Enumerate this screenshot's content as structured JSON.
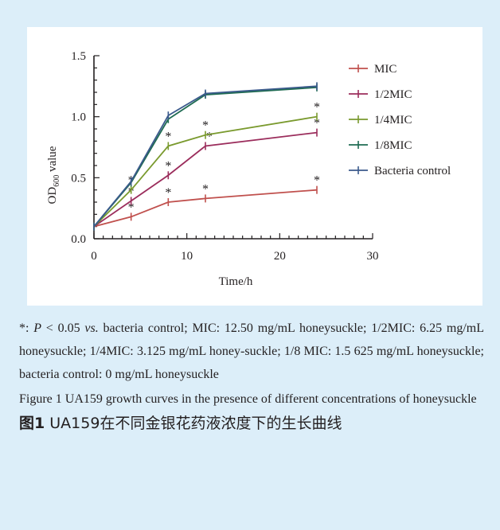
{
  "chart_data": {
    "type": "line",
    "title": "",
    "xlabel": "Time/h",
    "ylabel": {
      "main": "OD",
      "sub": "600",
      "rest": " value"
    },
    "xlim": [
      0,
      30
    ],
    "ylim": [
      0,
      1.5
    ],
    "x_ticks": [
      "0",
      "10",
      "20",
      "30"
    ],
    "y_ticks": [
      "0.0",
      "0.5",
      "1.0",
      "1.5"
    ],
    "x_tick_values": [
      0,
      10,
      20,
      30
    ],
    "y_tick_values": [
      0,
      0.5,
      1.0,
      1.5
    ],
    "x": [
      0,
      4,
      8,
      12,
      24
    ],
    "legend_position": "right",
    "grid": false,
    "series": [
      {
        "name": "MIC",
        "color": "#c0504d",
        "values": [
          0.1,
          0.18,
          0.3,
          0.33,
          0.4
        ],
        "stars": [
          false,
          true,
          true,
          true,
          true
        ]
      },
      {
        "name": "1/2MIC",
        "color": "#9b2d5c",
        "values": [
          0.1,
          0.31,
          0.52,
          0.76,
          0.87
        ],
        "stars": [
          false,
          true,
          true,
          true,
          true
        ]
      },
      {
        "name": "1/4MIC",
        "color": "#7a9a2e",
        "values": [
          0.1,
          0.4,
          0.76,
          0.85,
          1.0
        ],
        "stars": [
          false,
          true,
          true,
          true,
          true
        ]
      },
      {
        "name": "1/8MIC",
        "color": "#1f6b52",
        "values": [
          0.1,
          0.46,
          0.98,
          1.18,
          1.24
        ],
        "stars": [
          false,
          false,
          false,
          false,
          false
        ]
      },
      {
        "name": "Bacteria control",
        "color": "#3b5a8c",
        "values": [
          0.1,
          0.47,
          1.01,
          1.19,
          1.25
        ],
        "stars": [
          false,
          false,
          false,
          false,
          false
        ]
      }
    ],
    "star_label": "*"
  },
  "caption": {
    "note_star": "*: ",
    "note_p": "P",
    "note_lt": " < 0.05 ",
    "note_vs": "vs.",
    "note_rest": " bacteria control; MIC: 12.50 mg/mL honeysuckle; 1/2MIC: 6.25 mg/mL honeysuckle; 1/4MIC: 3.125 mg/mL honey-suckle; 1/8 MIC: 1.5 625 mg/mL honeysuckle; bacteria control: 0 mg/mL honeysuckle",
    "figure_en": "Figure 1   UA159 growth curves in the presence of different concentrations of honeysuckle",
    "figure_zh_label": "图1",
    "figure_zh_text": "  UA159在不同金银花药液浓度下的生长曲线"
  }
}
